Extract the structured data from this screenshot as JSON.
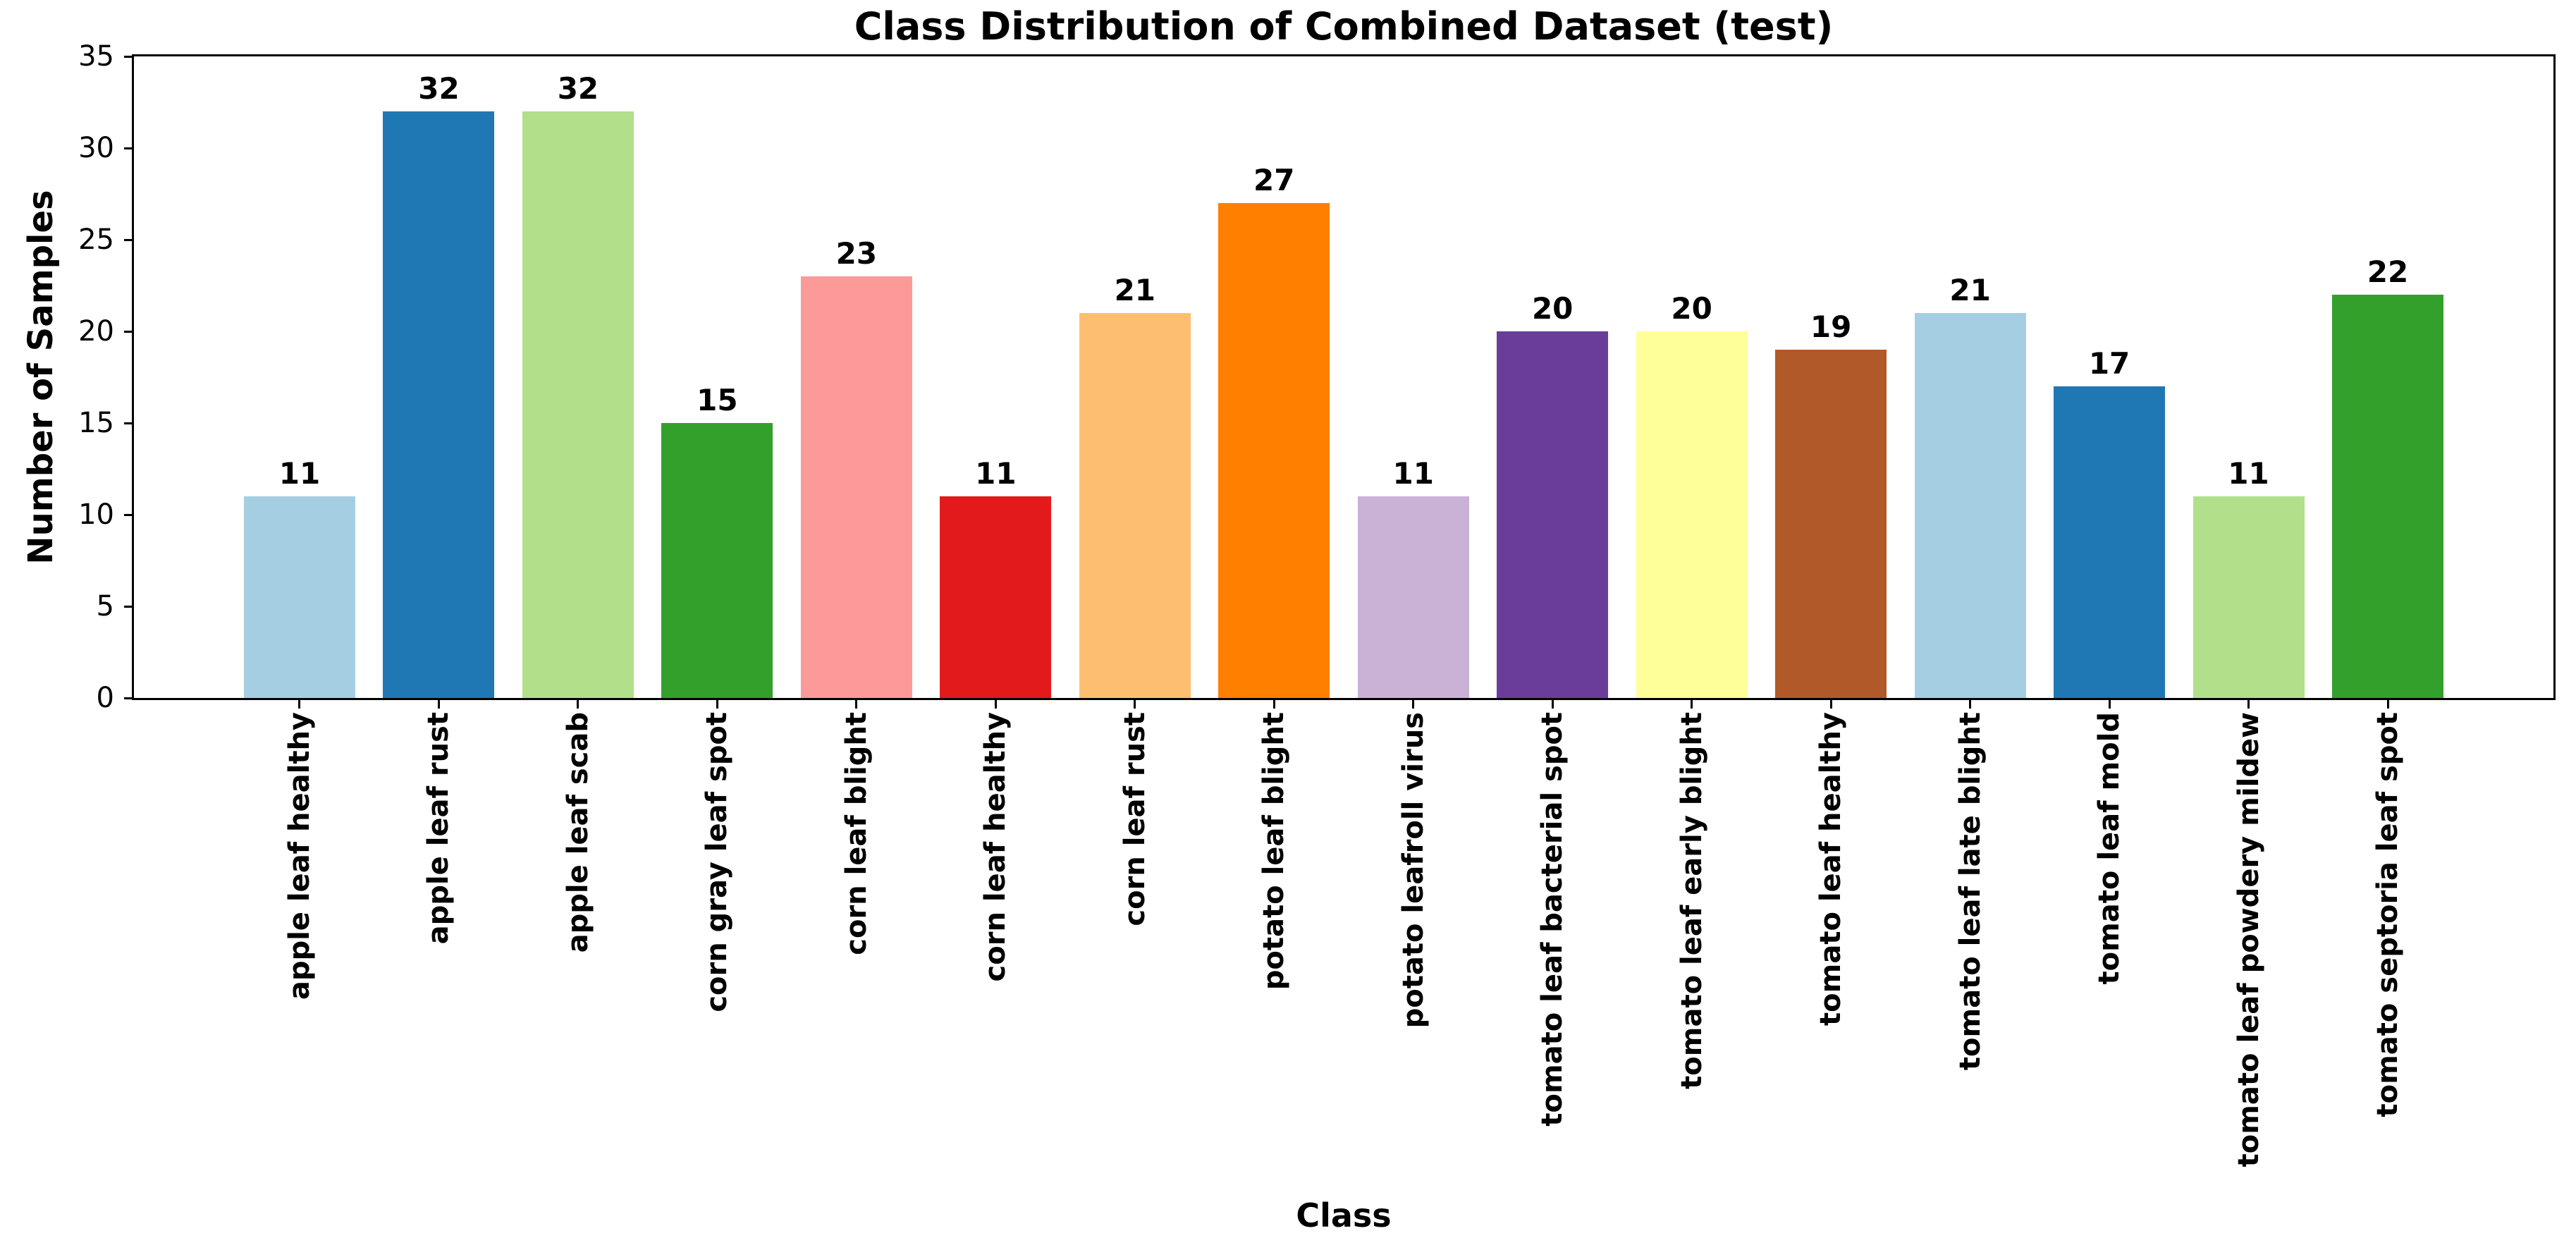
{
  "chart_data": {
    "type": "bar",
    "title": "Class Distribution of Combined Dataset (test)",
    "xlabel": "Class",
    "ylabel": "Number of Samples",
    "ylim": [
      0,
      35
    ],
    "yticks": [
      0,
      5,
      10,
      15,
      20,
      25,
      30,
      35
    ],
    "grid": false,
    "legend": "none",
    "bar_width_fraction": 0.8,
    "value_labels_shown": true,
    "categories": [
      "apple leaf healthy",
      "apple leaf rust",
      "apple leaf scab",
      "corn gray leaf spot",
      "corn leaf blight",
      "corn leaf healthy",
      "corn leaf rust",
      "potato leaf blight",
      "potato leafroll virus",
      "tomato leaf bacterial spot",
      "tomato leaf early blight",
      "tomato leaf healthy",
      "tomato leaf late blight",
      "tomato leaf mold",
      "tomato leaf powdery mildew",
      "tomato septoria leaf spot"
    ],
    "values": [
      11,
      32,
      32,
      15,
      23,
      11,
      21,
      27,
      11,
      20,
      20,
      19,
      21,
      17,
      11,
      22
    ],
    "bar_colors": [
      "#a6cee3",
      "#1f78b4",
      "#b2df8a",
      "#33a02c",
      "#fb9a99",
      "#e31a1c",
      "#fdbf6f",
      "#ff7f00",
      "#cab2d6",
      "#6a3d9a",
      "#ffff99",
      "#b15928",
      "#a6cee3",
      "#1f78b4",
      "#b2df8a",
      "#33a02c"
    ],
    "axis_color": "#000000",
    "background_color": "#ffffff"
  }
}
